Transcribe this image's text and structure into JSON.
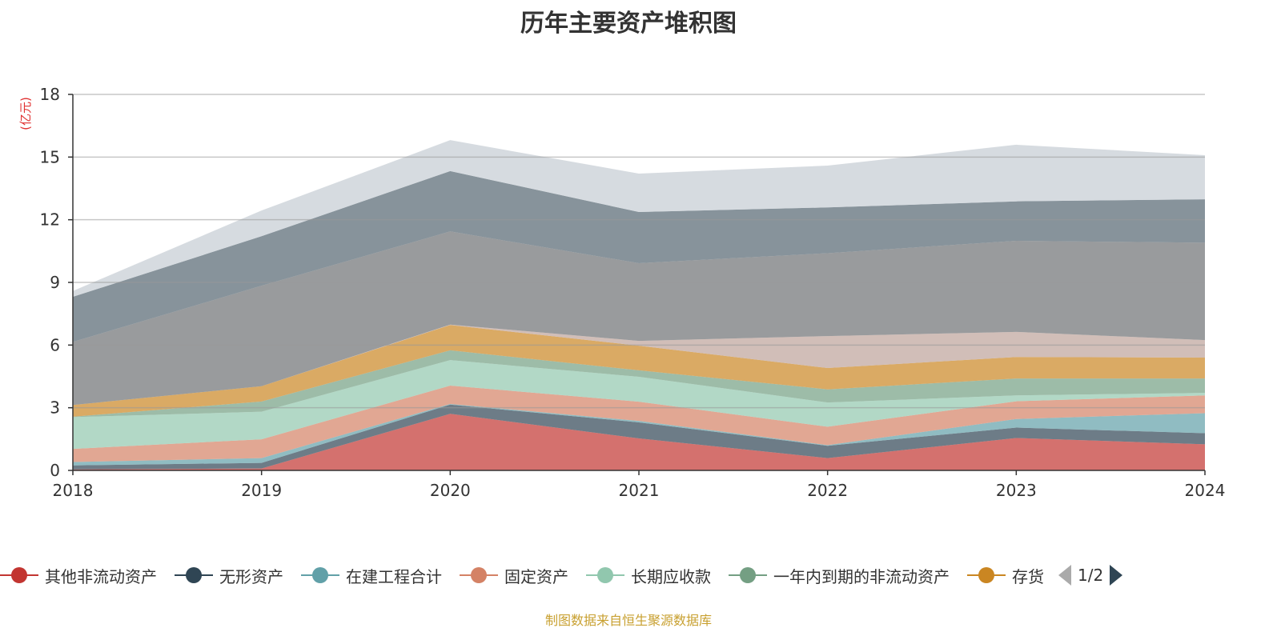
{
  "chart_data": {
    "type": "area",
    "stacked": true,
    "title": "历年主要资产堆积图",
    "ylabel": "(亿元)",
    "xlabel": "",
    "categories": [
      "2018",
      "2019",
      "2020",
      "2021",
      "2022",
      "2023",
      "2024"
    ],
    "ylim": [
      0,
      18
    ],
    "yticks": [
      "0",
      "3",
      "6",
      "9",
      "12",
      "15",
      "18"
    ],
    "grid": true,
    "legend_position": "bottom",
    "series": [
      {
        "name": "其他非流动资产",
        "color": "#c23531",
        "values": [
          0.05,
          0.09,
          2.71,
          1.53,
          0.59,
          1.55,
          1.25
        ]
      },
      {
        "name": "无形资产",
        "color": "#2f4554",
        "values": [
          0.19,
          0.27,
          0.44,
          0.77,
          0.59,
          0.5,
          0.53
        ]
      },
      {
        "name": "在建工程合计",
        "color": "#61a0a8",
        "values": [
          0.16,
          0.23,
          0.03,
          0.07,
          0.03,
          0.41,
          0.96
        ]
      },
      {
        "name": "固定资产",
        "color": "#d48265",
        "values": [
          0.63,
          0.9,
          0.88,
          0.92,
          0.88,
          0.85,
          0.85
        ]
      },
      {
        "name": "长期应收款",
        "color": "#91c7ae",
        "values": [
          1.52,
          1.32,
          1.22,
          1.19,
          1.16,
          0.28,
          0.12
        ]
      },
      {
        "name": "一年内到期的非流动资产",
        "color": "#749f83",
        "values": [
          0.02,
          0.49,
          0.47,
          0.31,
          0.63,
          0.81,
          0.69
        ]
      },
      {
        "name": "存货",
        "color": "#ca8622",
        "values": [
          0.56,
          0.73,
          1.21,
          1.18,
          1.02,
          1.03,
          1.0
        ]
      },
      {
        "color": "#bda29a",
        "values": [
          0,
          0,
          0.02,
          0.23,
          1.53,
          1.2,
          0.84
        ]
      },
      {
        "color": "#6e7074",
        "values": [
          3.02,
          4.81,
          4.46,
          3.72,
          3.97,
          4.36,
          4.66
        ]
      },
      {
        "color": "#546570",
        "values": [
          2.16,
          2.37,
          2.89,
          2.45,
          2.19,
          1.89,
          2.08
        ]
      },
      {
        "color": "#c4ccd3",
        "values": [
          0.28,
          1.23,
          1.48,
          1.84,
          2.0,
          2.71,
          2.11
        ]
      }
    ]
  },
  "legend": {
    "page": "1/2"
  },
  "footer": "制图数据来自恒生聚源数据库"
}
